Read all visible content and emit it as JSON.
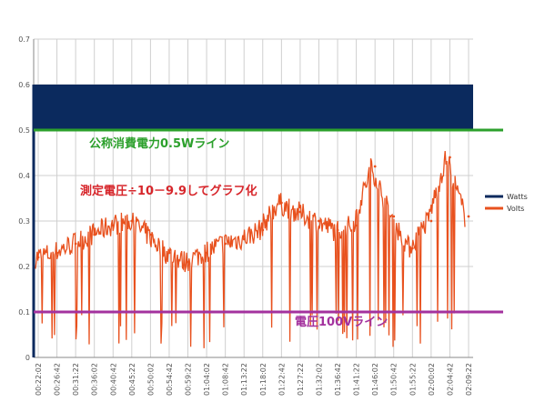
{
  "colors": {
    "watts": "#0b2a5e",
    "volts": "#e8511e",
    "nominal_line": "#2ca02c",
    "voltage_line": "#a3329e",
    "grid": "#cfcfcf",
    "axis_text": "#555555"
  },
  "chart_data": {
    "type": "line",
    "ylim": [
      0,
      0.7
    ],
    "yticks": [
      "0",
      "0.1",
      "0.2",
      "0.3",
      "0.4",
      "0.5",
      "0.6",
      "0.7"
    ],
    "categories": [
      "00:22:02",
      "00:26:42",
      "00:31:22",
      "00:36:02",
      "00:40:42",
      "00:45:22",
      "00:50:02",
      "00:54:42",
      "00:59:22",
      "01:04:02",
      "01:08:42",
      "01:13:22",
      "01:18:02",
      "01:22:42",
      "01:27:22",
      "01:32:02",
      "01:36:42",
      "01:41:22",
      "01:46:02",
      "01:50:42",
      "01:55:22",
      "02:00:02",
      "02:04:42",
      "02:09:22"
    ],
    "grid": true,
    "legend_position": "right",
    "series": [
      {
        "name": "Watts",
        "values": [
          0.6,
          0.6,
          0.6,
          0.6,
          0.6,
          0.6,
          0.6,
          0.6,
          0.6,
          0.6,
          0.6,
          0.6,
          0.6,
          0.6,
          0.6,
          0.6,
          0.6,
          0.6,
          0.6,
          0.6,
          0.6,
          0.6,
          0.6,
          0.6
        ]
      },
      {
        "name": "Volts",
        "values": [
          0.22,
          0.23,
          0.25,
          0.27,
          0.29,
          0.3,
          0.27,
          0.23,
          0.21,
          0.23,
          0.25,
          0.26,
          0.28,
          0.34,
          0.32,
          0.3,
          0.28,
          0.29,
          0.42,
          0.31,
          0.24,
          0.3,
          0.44,
          0.31
        ]
      }
    ],
    "annotations": {
      "nominal_line": {
        "value": 0.5,
        "label": "公称消費電力0.5Wライン"
      },
      "voltage_line": {
        "value": 0.1,
        "label": "電圧100Vライン"
      },
      "volts_note": "測定電圧÷10－9.9してグラフ化"
    }
  }
}
